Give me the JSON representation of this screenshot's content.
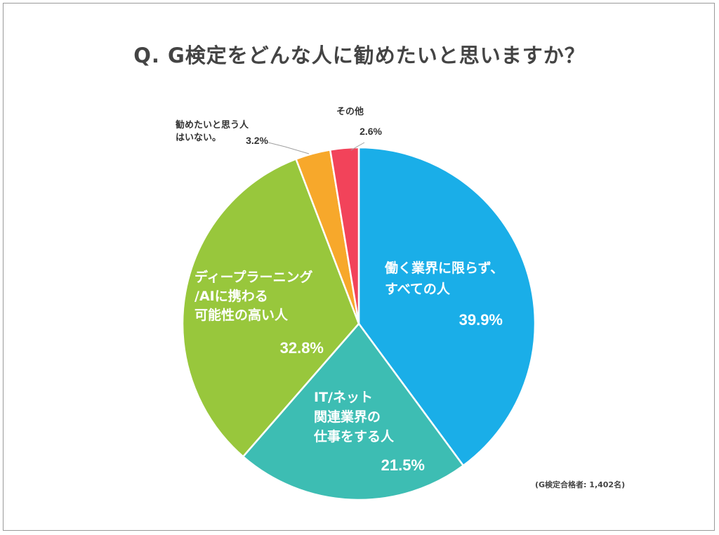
{
  "title": "Q. G検定をどんな人に勧めたいと思いますか？",
  "note": "(G検定合格者: 1,402名)",
  "chart_data": {
    "type": "pie",
    "title": "Q. G検定をどんな人に勧めたいと思いますか？",
    "start_angle": "12 o'clock",
    "direction": "clockwise",
    "slices": [
      {
        "label_lines": [
          "働く業界に限らず、",
          "すべての人"
        ],
        "value": 39.9,
        "value_label": "39.9%",
        "color": "#1aaee8",
        "label_placement": "inside"
      },
      {
        "label_lines": [
          "IT/ネット",
          "関連業界の",
          "仕事をする人"
        ],
        "value": 21.5,
        "value_label": "21.5%",
        "color": "#3dbdb3",
        "label_placement": "inside"
      },
      {
        "label_lines": [
          "ディープラーニング",
          "/AIに携わる",
          "可能性の高い人"
        ],
        "value": 32.8,
        "value_label": "32.8%",
        "color": "#98c73c",
        "label_placement": "inside"
      },
      {
        "label_lines": [
          "勧めたいと思う人",
          "はいない。"
        ],
        "value": 3.2,
        "value_label": "3.2%",
        "color": "#f7a82b",
        "label_placement": "outside"
      },
      {
        "label_lines": [
          "その他"
        ],
        "value": 2.6,
        "value_label": "2.6%",
        "color": "#f2435a",
        "label_placement": "outside"
      }
    ]
  }
}
